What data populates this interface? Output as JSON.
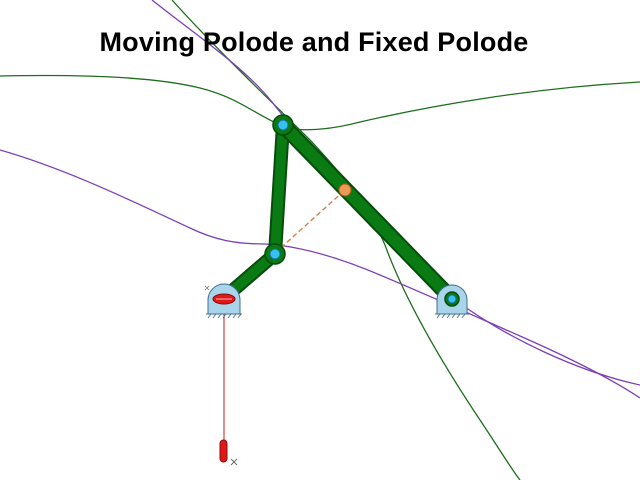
{
  "title": "Moving Polode and Fixed Polode",
  "colors": {
    "link": "#0a7a12",
    "link_dark": "#064d0c",
    "pin": "#33c3ee",
    "pin_ring": "#1a6fa0",
    "ground": "#a9d4ea",
    "ground_edge": "#3e6f8e",
    "moving_polode": "#7a3fb8",
    "fixed_polode": "#1d6e1d",
    "construction": "#d9804a",
    "instant_center": "#ee9a55",
    "slider": "#e01818",
    "trace": "#c41a1a",
    "background": "#ffffff"
  },
  "icons": {
    "ground_left": "pivot-ground-icon",
    "ground_right": "pivot-ground-icon",
    "instant_center": "instant-center-icon",
    "tracer": "pen-tracer-icon"
  }
}
